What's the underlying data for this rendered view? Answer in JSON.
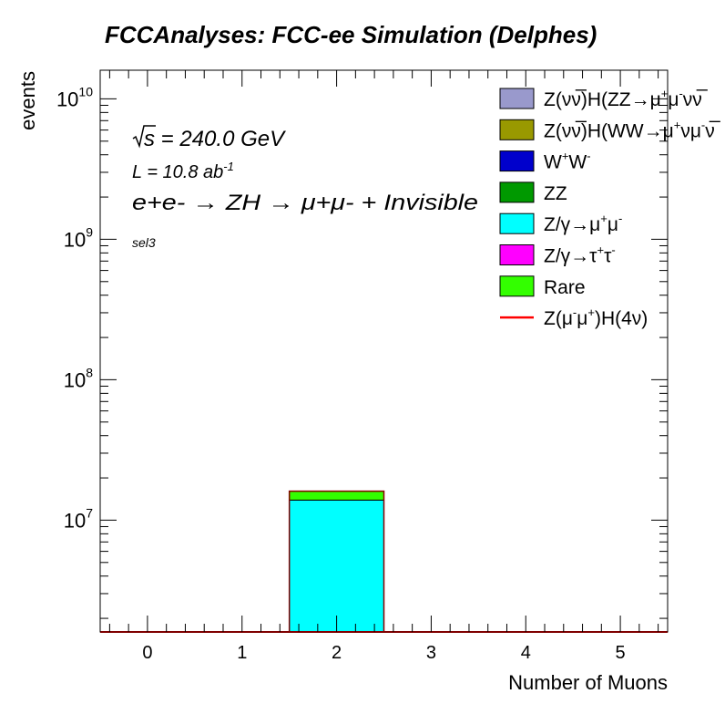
{
  "chart_data": {
    "type": "bar",
    "stacked": true,
    "title": "FCCAnalyses: FCC-ee Simulation (Delphes)",
    "xlabel": "Number of Muons",
    "ylabel": "events",
    "yscale": "log",
    "xlim": [
      -0.5,
      5.5
    ],
    "ylim": [
      1600000,
      16000000000
    ],
    "xticks": [
      "0",
      "1",
      "2",
      "3",
      "4",
      "5"
    ],
    "yticks": [
      {
        "value": 10000000,
        "base": "10",
        "exp": "7"
      },
      {
        "value": 100000000,
        "base": "10",
        "exp": "8"
      },
      {
        "value": 1000000000,
        "base": "10",
        "exp": "9"
      },
      {
        "value": 10000000000,
        "base": "10",
        "exp": "10"
      }
    ],
    "annotations": {
      "sqrt_s": "s = 240.0 GeV",
      "lumi": "L = 10.8 ab",
      "lumi_exp": "-1",
      "process": "e+e- → ZH → μ+μ- + Invisible",
      "selection": "sel3"
    },
    "bins": [
      0,
      1,
      2,
      3,
      4,
      5
    ],
    "series": [
      {
        "name": "Z(νν̅)H(ZZ→μ+μ-νν)",
        "color": "#9999cc",
        "values": [
          0,
          0,
          0,
          0,
          0,
          0
        ]
      },
      {
        "name": "Z(νν̅)H(WW→μ+νμ-ν)",
        "color": "#999900",
        "values": [
          0,
          0,
          0,
          0,
          0,
          0
        ]
      },
      {
        "name": "W+W-",
        "color": "#0000cc",
        "values": [
          0,
          0,
          0,
          0,
          0,
          0
        ]
      },
      {
        "name": "ZZ",
        "color": "#009900",
        "values": [
          0,
          0,
          0,
          0,
          0,
          0
        ]
      },
      {
        "name": "Z/γ→μ+μ-",
        "color": "#00ffff",
        "values": [
          0,
          0,
          13900000,
          0,
          0,
          0
        ]
      },
      {
        "name": "Z/γ→τ+τ-",
        "color": "#ff00ff",
        "values": [
          0,
          0,
          0,
          0,
          0,
          0
        ]
      },
      {
        "name": "Rare",
        "color": "#33ff00",
        "values": [
          0,
          0,
          2200000,
          0,
          0,
          0
        ]
      }
    ],
    "signal": {
      "name": "Z(μ-μ+)H(4ν)",
      "color": "#ff0000",
      "values": [
        0,
        0,
        0,
        0,
        0,
        0
      ]
    },
    "legend_position": "top-right",
    "legend_entries": [
      {
        "kind": "box",
        "color": "#9999cc",
        "parts": [
          [
            "Z(νν̅)H(ZZ→μ",
            ""
          ],
          [
            "+",
            1
          ],
          [
            "μ",
            ""
          ],
          [
            "-",
            1
          ],
          [
            "νν̅",
            ""
          ]
        ]
      },
      {
        "kind": "box",
        "color": "#999900",
        "parts": [
          [
            "Z(νν̅)H(WW→μ",
            ""
          ],
          [
            "+",
            1
          ],
          [
            "νμ",
            ""
          ],
          [
            "-",
            1
          ],
          [
            "ν̅",
            ""
          ]
        ]
      },
      {
        "kind": "box",
        "color": "#0000cc",
        "parts": [
          [
            "W",
            ""
          ],
          [
            "+",
            1
          ],
          [
            "W",
            ""
          ],
          [
            "-",
            1
          ]
        ]
      },
      {
        "kind": "box",
        "color": "#009900",
        "parts": [
          [
            "ZZ",
            ""
          ]
        ]
      },
      {
        "kind": "box",
        "color": "#00ffff",
        "parts": [
          [
            "Z/γ→μ",
            ""
          ],
          [
            "+",
            1
          ],
          [
            "μ",
            ""
          ],
          [
            "-",
            1
          ]
        ]
      },
      {
        "kind": "box",
        "color": "#ff00ff",
        "parts": [
          [
            "Z/γ→τ",
            ""
          ],
          [
            "+",
            1
          ],
          [
            "τ",
            ""
          ],
          [
            "-",
            1
          ]
        ]
      },
      {
        "kind": "box",
        "color": "#33ff00",
        "parts": [
          [
            "Rare",
            ""
          ]
        ]
      },
      {
        "kind": "line",
        "color": "#ff0000",
        "parts": [
          [
            "Z(μ",
            ""
          ],
          [
            "-",
            1
          ],
          [
            "μ",
            ""
          ],
          [
            "+",
            1
          ],
          [
            ")H(4ν)",
            ""
          ]
        ]
      }
    ]
  }
}
